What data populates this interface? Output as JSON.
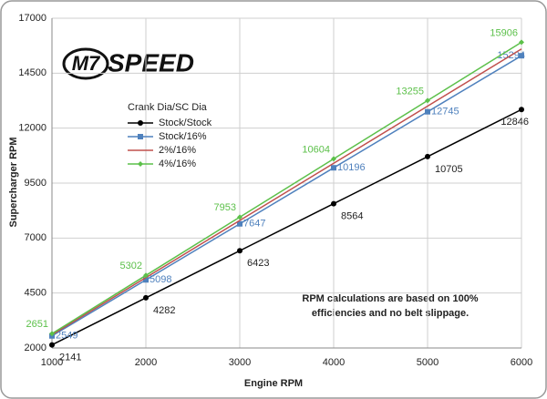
{
  "chart_data": {
    "type": "line",
    "logo": {
      "mark": "M7",
      "text": "SPEED"
    },
    "x_label": "Engine RPM",
    "y_label": "Supercharger RPM",
    "legend_title": "Crank Dia/SC Dia",
    "annotation": [
      "RPM calculations are based on 100%",
      "efficiencies and no belt slippage."
    ],
    "x": [
      1000,
      2000,
      3000,
      4000,
      5000,
      6000
    ],
    "xlim": [
      1000,
      6000
    ],
    "xticks": [
      1000,
      2000,
      3000,
      4000,
      5000,
      6000
    ],
    "ylim": [
      2000,
      17000
    ],
    "yticks": [
      2000,
      4500,
      7000,
      9500,
      12000,
      14500,
      17000
    ],
    "grid": true,
    "series": [
      {
        "name": "Stock/Stock",
        "color": "#000000",
        "marker": "circle",
        "show_labels": true,
        "values": [
          2141,
          4282,
          6423,
          8564,
          10705,
          12846
        ]
      },
      {
        "name": "Stock/16%",
        "color": "#4f81bd",
        "marker": "square",
        "show_labels": true,
        "values": [
          2549,
          5098,
          7647,
          10196,
          12745,
          15294
        ]
      },
      {
        "name": "2%/16%",
        "color": "#c0504d",
        "marker": "none",
        "show_labels": false,
        "values": [
          2600,
          5200,
          7800,
          10400,
          13000,
          15600
        ]
      },
      {
        "name": "4%/16%",
        "color": "#5cc04a",
        "marker": "diamond",
        "show_labels": true,
        "values": [
          2651,
          5302,
          7953,
          10604,
          13255,
          15906
        ]
      }
    ]
  }
}
